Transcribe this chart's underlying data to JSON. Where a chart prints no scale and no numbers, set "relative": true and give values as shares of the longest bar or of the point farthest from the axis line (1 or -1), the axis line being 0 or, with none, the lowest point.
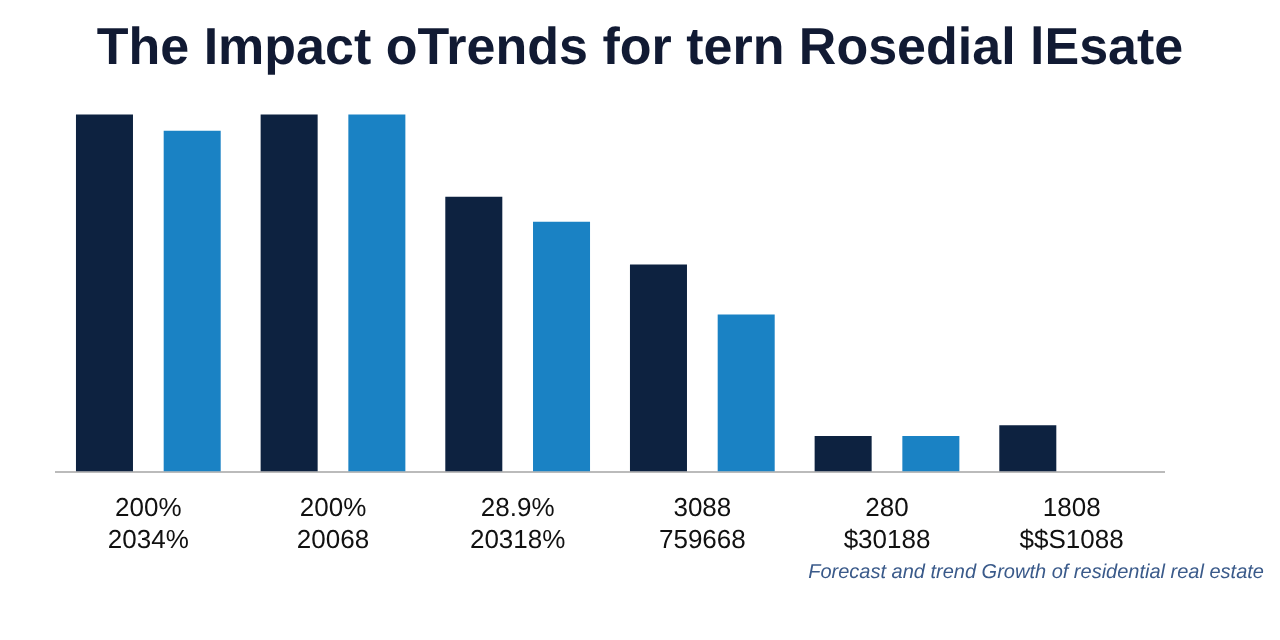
{
  "chart_data": {
    "type": "bar",
    "title": "The Impact oTrends for tern Rosedial lEsate",
    "relative": true,
    "categories": [
      "200%\n2034%",
      "200%\n20068",
      "28.9%\n20318%",
      "3088\n759668",
      "280\n$30188",
      "1808\n$$S1088"
    ],
    "series": [
      {
        "color": "#0d2240",
        "values": [
          1,
          1,
          0.77,
          0.58,
          0.1,
          0.13
        ]
      },
      {
        "color": "#1a82c4",
        "values": [
          0.955,
          1,
          0.7,
          0.44,
          0.1,
          null
        ]
      }
    ],
    "annotations": [
      "Forecast and trend Growth of residential real estate"
    ]
  }
}
